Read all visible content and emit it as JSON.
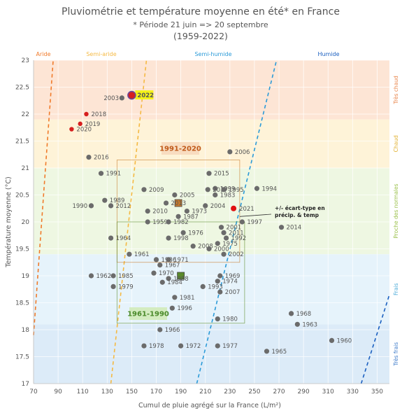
{
  "chart_data": {
    "type": "scatter",
    "title": "Pluviométrie et température moyenne en été* en France",
    "subtitle": "* Période 21 juin => 20 septembre",
    "subtitle2": "(1959-2022)",
    "xlabel": "Cumul de pluie agrégé sur la France (L/m²)",
    "ylabel": "Température moyenne (°C)",
    "xlim": [
      70,
      360
    ],
    "ylim": [
      17,
      23
    ],
    "x_ticks": [
      "70",
      "90",
      "110",
      "130",
      "150",
      "170",
      "190",
      "210",
      "230",
      "250",
      "270",
      "290",
      "310",
      "330",
      "350"
    ],
    "y_ticks": [
      "17",
      "17.5",
      "18",
      "18.5",
      "19",
      "19.5",
      "20",
      "20.5",
      "21",
      "21.5",
      "22",
      "22.5",
      "23"
    ],
    "grid": true,
    "moisture_zones": [
      {
        "label": "Aride",
        "color": "#f07a2a"
      },
      {
        "label": "Semi-aride",
        "color": "#f5b942"
      },
      {
        "label": "Semi-humide",
        "color": "#2a9ad8"
      },
      {
        "label": "Humide",
        "color": "#1a5fc0"
      }
    ],
    "temperature_bands": [
      {
        "label": "Très chaud",
        "from": 21.9,
        "to": 23,
        "color": "#fde5d5",
        "text_color": "#e8844a"
      },
      {
        "label": "Chaud",
        "from": 21,
        "to": 21.9,
        "color": "#fef3d8",
        "text_color": "#e0b030"
      },
      {
        "label": "Proche des normales",
        "from": 19.4,
        "to": 21,
        "color": "#eef7e2",
        "text_color": "#9ac04a"
      },
      {
        "label": "Frais",
        "from": 18.1,
        "to": 19.4,
        "color": "#e6f3fb",
        "text_color": "#4aaad8"
      },
      {
        "label": "Très frais",
        "from": 17,
        "to": 18.1,
        "color": "#dcebf8",
        "text_color": "#3a78c8"
      }
    ],
    "periods": [
      {
        "label": "1991-2020",
        "mean": [
          188,
          20.35
        ],
        "box": {
          "x": [
            138,
            238
          ],
          "y": [
            19.25,
            21.15
          ]
        },
        "color": "#c87a2a",
        "label_bg": "#f8dcc0",
        "label_color": "#c05a1a"
      },
      {
        "label": "1961-1990",
        "mean": [
          190,
          19
        ],
        "box": {
          "x": [
            138,
            242
          ],
          "y": [
            18.12,
            20
          ]
        },
        "color": "#5a8a2a",
        "label_bg": "#d4ecc0",
        "label_color": "#4a8a2a"
      }
    ],
    "annotation": "+/- écart-type en précip. & temp",
    "highlight_year": "2022",
    "points": [
      {
        "year": "2022",
        "x": 150,
        "y": 22.35,
        "type": "highlight"
      },
      {
        "year": "2003",
        "x": 142,
        "y": 22.3,
        "type": "normal"
      },
      {
        "year": "2018",
        "x": 113,
        "y": 22.0,
        "type": "recent"
      },
      {
        "year": "2019",
        "x": 108,
        "y": 21.82,
        "type": "recent"
      },
      {
        "year": "2020",
        "x": 101,
        "y": 21.72,
        "type": "recent"
      },
      {
        "year": "2016",
        "x": 115,
        "y": 21.2,
        "type": "normal"
      },
      {
        "year": "2006",
        "x": 230,
        "y": 21.3,
        "type": "normal"
      },
      {
        "year": "1991",
        "x": 125,
        "y": 20.9,
        "type": "normal"
      },
      {
        "year": "2015",
        "x": 213,
        "y": 20.9,
        "type": "normal"
      },
      {
        "year": "2009",
        "x": 160,
        "y": 20.6,
        "type": "normal"
      },
      {
        "year": "1999",
        "x": 218,
        "y": 20.62,
        "type": "normal"
      },
      {
        "year": "2017",
        "x": 212,
        "y": 20.6,
        "type": "normal"
      },
      {
        "year": "1995",
        "x": 225,
        "y": 20.6,
        "type": "normal"
      },
      {
        "year": "1994",
        "x": 252,
        "y": 20.62,
        "type": "normal"
      },
      {
        "year": "2005",
        "x": 185,
        "y": 20.5,
        "type": "normal"
      },
      {
        "year": "1983",
        "x": 218,
        "y": 20.5,
        "type": "normal"
      },
      {
        "year": "2013",
        "x": 178,
        "y": 20.35,
        "type": "normal"
      },
      {
        "year": "1989",
        "x": 128,
        "y": 20.4,
        "type": "normal"
      },
      {
        "year": "1990",
        "x": 117,
        "y": 20.3,
        "type": "normal"
      },
      {
        "year": "2012",
        "x": 133,
        "y": 20.3,
        "type": "normal"
      },
      {
        "year": "2004",
        "x": 210,
        "y": 20.3,
        "type": "normal"
      },
      {
        "year": "2021",
        "x": 233,
        "y": 20.25,
        "type": "recent"
      },
      {
        "year": "2010",
        "x": 163,
        "y": 20.2,
        "type": "normal"
      },
      {
        "year": "1973",
        "x": 195,
        "y": 20.2,
        "type": "normal"
      },
      {
        "year": "1987",
        "x": 188,
        "y": 20.1,
        "type": "normal"
      },
      {
        "year": "1959",
        "x": 163,
        "y": 20.0,
        "type": "normal"
      },
      {
        "year": "1982",
        "x": 180,
        "y": 20.0,
        "type": "normal"
      },
      {
        "year": "1997",
        "x": 240,
        "y": 20.0,
        "type": "normal"
      },
      {
        "year": "2001",
        "x": 223,
        "y": 19.9,
        "type": "normal"
      },
      {
        "year": "2014",
        "x": 272,
        "y": 19.9,
        "type": "normal"
      },
      {
        "year": "1976",
        "x": 192,
        "y": 19.8,
        "type": "normal"
      },
      {
        "year": "2011",
        "x": 225,
        "y": 19.8,
        "type": "normal"
      },
      {
        "year": "1964",
        "x": 133,
        "y": 19.7,
        "type": "normal"
      },
      {
        "year": "1998",
        "x": 180,
        "y": 19.7,
        "type": "normal"
      },
      {
        "year": "1992",
        "x": 227,
        "y": 19.7,
        "type": "normal"
      },
      {
        "year": "1975",
        "x": 220,
        "y": 19.6,
        "type": "normal"
      },
      {
        "year": "2008",
        "x": 200,
        "y": 19.55,
        "type": "normal"
      },
      {
        "year": "2000",
        "x": 213,
        "y": 19.5,
        "type": "normal"
      },
      {
        "year": "2002",
        "x": 225,
        "y": 19.4,
        "type": "normal"
      },
      {
        "year": "1961",
        "x": 148,
        "y": 19.4,
        "type": "normal"
      },
      {
        "year": "1986",
        "x": 170,
        "y": 19.3,
        "type": "normal"
      },
      {
        "year": "1971",
        "x": 180,
        "y": 19.3,
        "type": "normal"
      },
      {
        "year": "1967",
        "x": 173,
        "y": 19.2,
        "type": "normal"
      },
      {
        "year": "1970",
        "x": 168,
        "y": 19.05,
        "type": "normal"
      },
      {
        "year": "1962",
        "x": 117,
        "y": 19.0,
        "type": "normal"
      },
      {
        "year": "1985",
        "x": 135,
        "y": 19.0,
        "type": "normal"
      },
      {
        "year": "1988",
        "x": 180,
        "y": 18.95,
        "type": "normal"
      },
      {
        "year": "1969",
        "x": 222,
        "y": 19.0,
        "type": "normal"
      },
      {
        "year": "1974",
        "x": 220,
        "y": 18.9,
        "type": "normal"
      },
      {
        "year": "1984",
        "x": 175,
        "y": 18.88,
        "type": "normal"
      },
      {
        "year": "1979",
        "x": 135,
        "y": 18.8,
        "type": "normal"
      },
      {
        "year": "1993",
        "x": 208,
        "y": 18.8,
        "type": "normal"
      },
      {
        "year": "2007",
        "x": 222,
        "y": 18.7,
        "type": "normal"
      },
      {
        "year": "1981",
        "x": 185,
        "y": 18.6,
        "type": "normal"
      },
      {
        "year": "1996",
        "x": 183,
        "y": 18.4,
        "type": "normal"
      },
      {
        "year": "1980",
        "x": 220,
        "y": 18.2,
        "type": "normal"
      },
      {
        "year": "1968",
        "x": 280,
        "y": 18.3,
        "type": "normal"
      },
      {
        "year": "1963",
        "x": 285,
        "y": 18.1,
        "type": "normal"
      },
      {
        "year": "1966",
        "x": 173,
        "y": 18.0,
        "type": "normal"
      },
      {
        "year": "1960",
        "x": 313,
        "y": 17.8,
        "type": "normal"
      },
      {
        "year": "1978",
        "x": 160,
        "y": 17.7,
        "type": "normal"
      },
      {
        "year": "1972",
        "x": 190,
        "y": 17.7,
        "type": "normal"
      },
      {
        "year": "1977",
        "x": 220,
        "y": 17.7,
        "type": "normal"
      },
      {
        "year": "1965",
        "x": 260,
        "y": 17.6,
        "type": "normal"
      }
    ]
  }
}
